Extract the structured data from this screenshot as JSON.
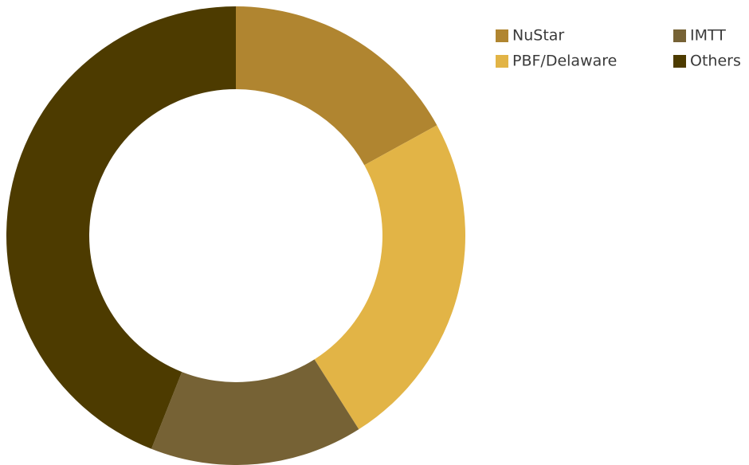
{
  "chart_data": {
    "type": "donut",
    "categories": [
      "NuStar",
      "PBF/Delaware",
      "IMTT",
      "Others"
    ],
    "values": [
      17,
      24,
      15,
      44
    ],
    "colors": [
      "#b08530",
      "#e2b446",
      "#766235",
      "#4d3b00"
    ],
    "legend": "top-right"
  }
}
